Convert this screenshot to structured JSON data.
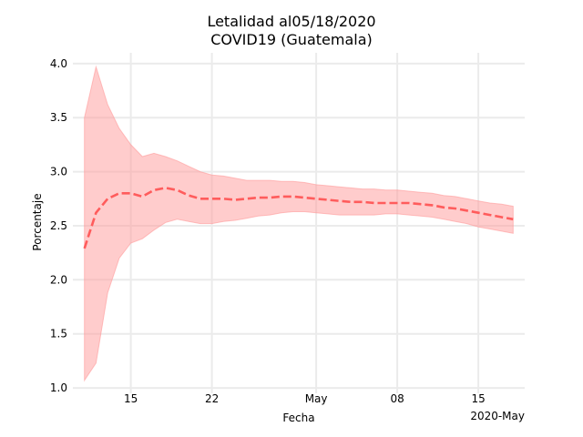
{
  "chart_data": {
    "type": "line",
    "title": "Letalidad al05/18/2020",
    "subtitle": "COVID19 (Guatemala)",
    "xlabel": "Fecha",
    "ylabel": "Porcentaje",
    "x_offset_label": "2020-May",
    "x_tick_labels": [
      "15",
      "22",
      "May",
      "08",
      "15"
    ],
    "x_tick_dates": [
      "2020-04-15",
      "2020-04-22",
      "2020-05-01",
      "2020-05-08",
      "2020-05-15"
    ],
    "xlim": [
      "2020-04-10",
      "2020-05-19"
    ],
    "ylim": [
      0.95,
      4.1
    ],
    "y_ticks": [
      1.0,
      1.5,
      2.0,
      2.5,
      3.0,
      3.5,
      4.0
    ],
    "y_tick_labels": [
      "1.0",
      "1.5",
      "2.0",
      "2.5",
      "3.0",
      "3.5",
      "4.0"
    ],
    "grid": true,
    "colors": {
      "line": "#ff5c5c",
      "band": "#ff9999",
      "grid": "#ebebeb"
    },
    "series": [
      {
        "style": "dashed",
        "x": [
          "2020-04-11",
          "2020-04-12",
          "2020-04-13",
          "2020-04-14",
          "2020-04-15",
          "2020-04-16",
          "2020-04-17",
          "2020-04-18",
          "2020-04-19",
          "2020-04-20",
          "2020-04-21",
          "2020-04-22",
          "2020-04-23",
          "2020-04-24",
          "2020-04-25",
          "2020-04-26",
          "2020-04-27",
          "2020-04-28",
          "2020-04-29",
          "2020-04-30",
          "2020-05-01",
          "2020-05-02",
          "2020-05-03",
          "2020-05-04",
          "2020-05-05",
          "2020-05-06",
          "2020-05-07",
          "2020-05-08",
          "2020-05-09",
          "2020-05-10",
          "2020-05-11",
          "2020-05-12",
          "2020-05-13",
          "2020-05-14",
          "2020-05-15",
          "2020-05-16",
          "2020-05-17",
          "2020-05-18"
        ],
        "y": [
          2.29,
          2.62,
          2.75,
          2.8,
          2.8,
          2.77,
          2.83,
          2.85,
          2.83,
          2.78,
          2.75,
          2.75,
          2.75,
          2.74,
          2.75,
          2.76,
          2.76,
          2.77,
          2.77,
          2.76,
          2.75,
          2.74,
          2.73,
          2.72,
          2.72,
          2.71,
          2.71,
          2.71,
          2.71,
          2.7,
          2.69,
          2.67,
          2.66,
          2.64,
          2.62,
          2.6,
          2.58,
          2.56
        ],
        "lower": [
          1.07,
          1.23,
          1.88,
          2.2,
          2.34,
          2.38,
          2.46,
          2.53,
          2.56,
          2.54,
          2.52,
          2.52,
          2.54,
          2.55,
          2.57,
          2.59,
          2.6,
          2.62,
          2.63,
          2.63,
          2.62,
          2.61,
          2.6,
          2.6,
          2.6,
          2.6,
          2.61,
          2.61,
          2.6,
          2.59,
          2.58,
          2.56,
          2.54,
          2.52,
          2.49,
          2.47,
          2.45,
          2.43
        ],
        "upper": [
          3.5,
          3.97,
          3.62,
          3.4,
          3.25,
          3.14,
          3.17,
          3.14,
          3.1,
          3.05,
          3.0,
          2.97,
          2.96,
          2.94,
          2.92,
          2.92,
          2.92,
          2.91,
          2.91,
          2.9,
          2.88,
          2.87,
          2.86,
          2.85,
          2.84,
          2.84,
          2.83,
          2.83,
          2.82,
          2.81,
          2.8,
          2.78,
          2.77,
          2.75,
          2.73,
          2.71,
          2.7,
          2.68
        ]
      }
    ]
  }
}
